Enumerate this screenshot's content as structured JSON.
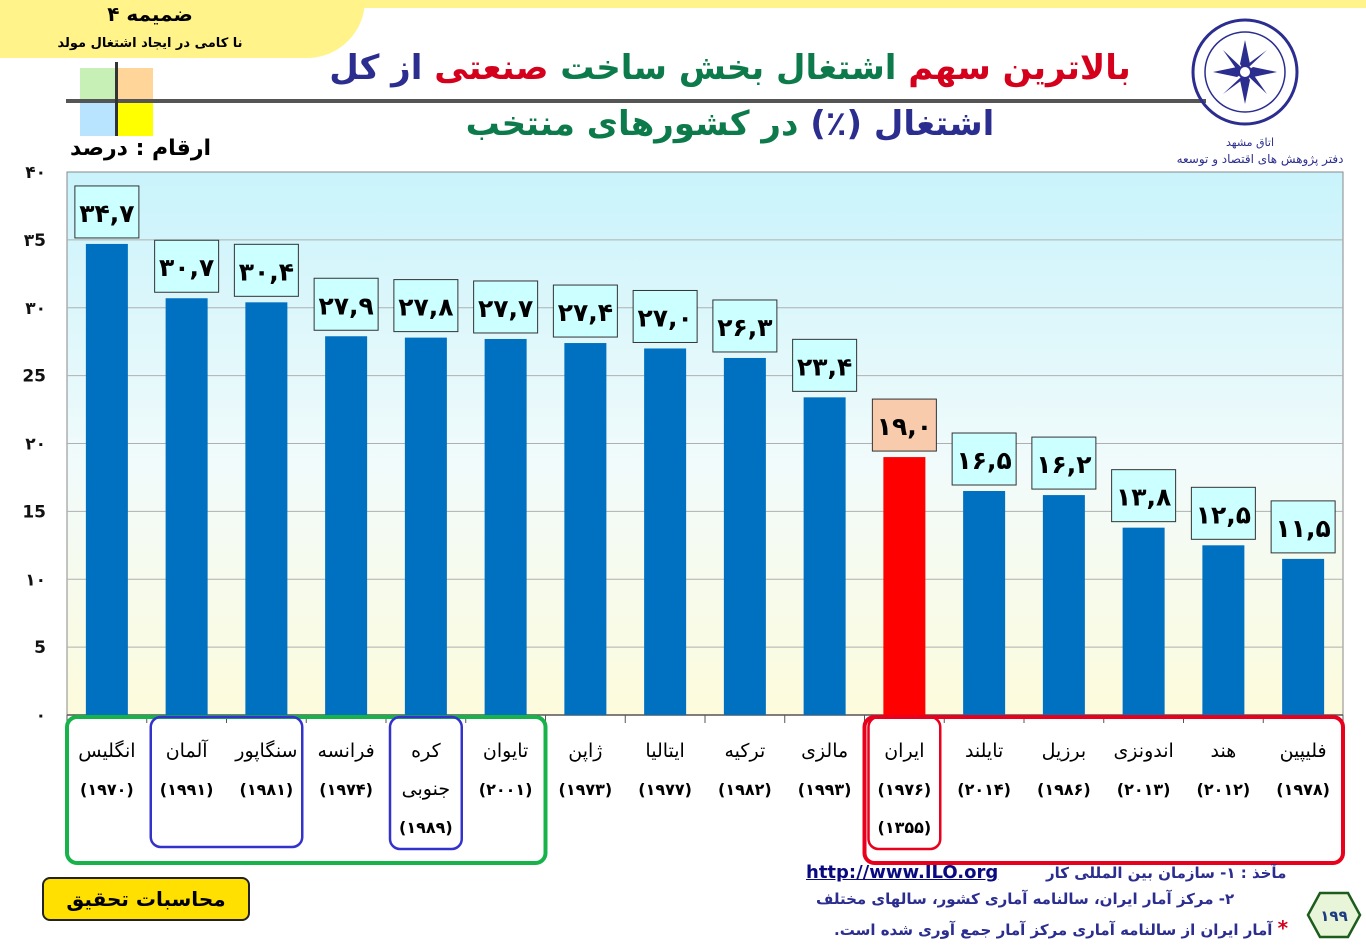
{
  "annex": {
    "title": "ضمیمه ۴",
    "subtitle": "نا کامی در ایجاد اشتغال مولد"
  },
  "title": {
    "line1": [
      {
        "text": "بالاترین سهم ",
        "color": "#d4001c"
      },
      {
        "text": "اشتغال بخش ساخت ",
        "color": "#0c7a4a"
      },
      {
        "text": "صنعتی ",
        "color": "#d4001c"
      },
      {
        "text": "از کل",
        "color": "#2b2d8f"
      }
    ],
    "line2": [
      {
        "text": "اشتغال (٪) ",
        "color": "#2b2d8f"
      },
      {
        "text": "در کشورهای منتخب",
        "color": "#0c7a4a"
      }
    ]
  },
  "unit_label": "ارقام : درصد",
  "logo": {
    "icon": "chamber-of-commerce-seal",
    "name": "اتاق مشهد",
    "department": "دفتر پژوهش های اقتصاد و توسعه"
  },
  "colors": {
    "bar": "#0070c0",
    "highlight_bar": "#ff0000",
    "label_box": "#ccffff",
    "highlight_label_box": "#f8cbad",
    "group_green": "#17b34a",
    "group_blue": "#3333cc",
    "group_red": "#e8001c"
  },
  "chart_data": {
    "type": "bar",
    "ylim": [
      0,
      40
    ],
    "yticks": [
      "۰",
      "5",
      "۱۰",
      "15",
      "۲۰",
      "25",
      "۳۰",
      "۳5",
      "۴۰"
    ],
    "grid": true,
    "categories": [
      {
        "name": "انگلیس",
        "year": "(۱۹۷۰)"
      },
      {
        "name": "آلمان",
        "year": "(۱۹۹۱)"
      },
      {
        "name": "سنگاپور",
        "year": "(۱۹۸۱)"
      },
      {
        "name": "فرانسه",
        "year": "(۱۹۷۴)"
      },
      {
        "name": "کره\nجنوبی",
        "year": "(۱۹۸۹)"
      },
      {
        "name": "تایوان",
        "year": "(۲۰۰۱)"
      },
      {
        "name": "ژاپن",
        "year": "(۱۹۷۳)"
      },
      {
        "name": "ایتالیا",
        "year": "(۱۹۷۷)"
      },
      {
        "name": "ترکیه",
        "year": "(۱۹۸۲)"
      },
      {
        "name": "مالزی",
        "year": "(۱۹۹۳)"
      },
      {
        "name": "ایران",
        "year": "(۱۹۷۶)\n(۱۳۵۵)"
      },
      {
        "name": "تایلند",
        "year": "(۲۰۱۴)"
      },
      {
        "name": "برزیل",
        "year": "(۱۹۸۶)"
      },
      {
        "name": "اندونزی",
        "year": "(۲۰۱۳)"
      },
      {
        "name": "هند",
        "year": "(۲۰۱۲)"
      },
      {
        "name": "فلیپین",
        "year": "(۱۹۷۸)"
      }
    ],
    "values": [
      34.7,
      30.7,
      30.4,
      27.9,
      27.8,
      27.7,
      27.4,
      27.0,
      26.3,
      23.4,
      19.0,
      16.5,
      16.2,
      13.8,
      12.5,
      11.5
    ],
    "value_labels": [
      "۳۴,۷",
      "۳۰,۷",
      "۳۰,۴",
      "۲۷,۹",
      "۲۷,۸",
      "۲۷,۷",
      "۲۷,۴",
      "۲۷,۰",
      "۲۶,۳",
      "۲۳,۴",
      "۱۹,۰",
      "۱۶,۵",
      "۱۶,۲",
      "۱۳,۸",
      "۱۲,۵",
      "۱۱,۵"
    ],
    "highlight": [
      10
    ],
    "groups": [
      {
        "from": 0,
        "to": 5,
        "color": "green"
      },
      {
        "from": 1,
        "to": 2,
        "color": "blue"
      },
      {
        "from": 4,
        "to": 4,
        "color": "blue"
      },
      {
        "from": 10,
        "to": 15,
        "color": "red"
      },
      {
        "from": 10,
        "to": 10,
        "color": "red"
      }
    ]
  },
  "sources": {
    "line1_prefix": "مآخذ : ۱- سازمان بین المللی کار",
    "line1_url": "http://www.ILO.org",
    "line2": "۲- مرکز آمار ایران، سالنامه آماری کشور، سالهای مختلف",
    "line3_star": "*",
    "line3": "آمار ایران از سالنامه آماری مرکز آمار جمع آوری شده است."
  },
  "calc_box": "محاسبات تحقیق",
  "page_number": "۱۹۹"
}
